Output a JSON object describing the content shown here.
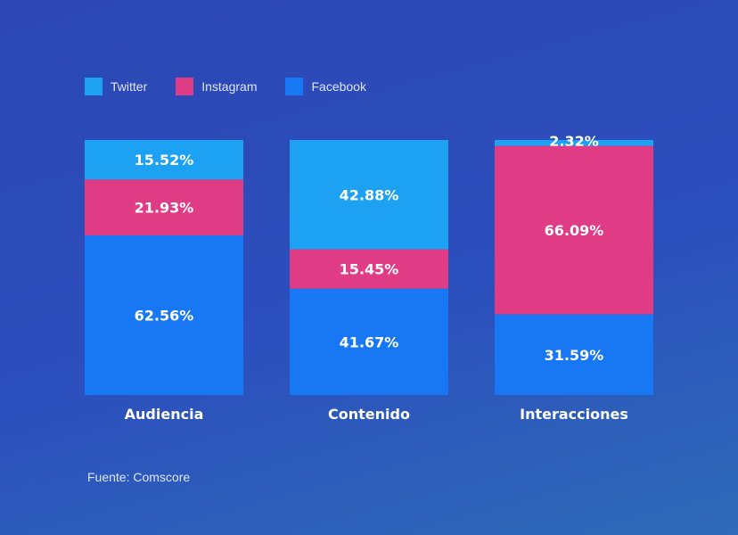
{
  "legend": [
    {
      "label": "Twitter",
      "color": "#1da1f2"
    },
    {
      "label": "Instagram",
      "color": "#e03c86"
    },
    {
      "label": "Facebook",
      "color": "#1877f2"
    }
  ],
  "source": "Fuente: Comscore",
  "chart_data": {
    "type": "bar",
    "stacked": true,
    "categories": [
      "Audiencia",
      "Contenido",
      "Interacciones"
    ],
    "series": [
      {
        "name": "Twitter",
        "color": "#1da1f2",
        "values": [
          15.52,
          42.88,
          2.32
        ],
        "labels": [
          "15.52%",
          "42.88%",
          "2.32%"
        ]
      },
      {
        "name": "Instagram",
        "color": "#e03c86",
        "values": [
          21.93,
          15.45,
          66.09
        ],
        "labels": [
          "21.93%",
          "15.45%",
          "66.09%"
        ]
      },
      {
        "name": "Facebook",
        "color": "#1877f2",
        "values": [
          62.56,
          41.67,
          31.59
        ],
        "labels": [
          "62.56%",
          "41.67%",
          "31.59%"
        ]
      }
    ],
    "ylim": [
      0,
      100
    ],
    "legend_position": "top-left"
  }
}
